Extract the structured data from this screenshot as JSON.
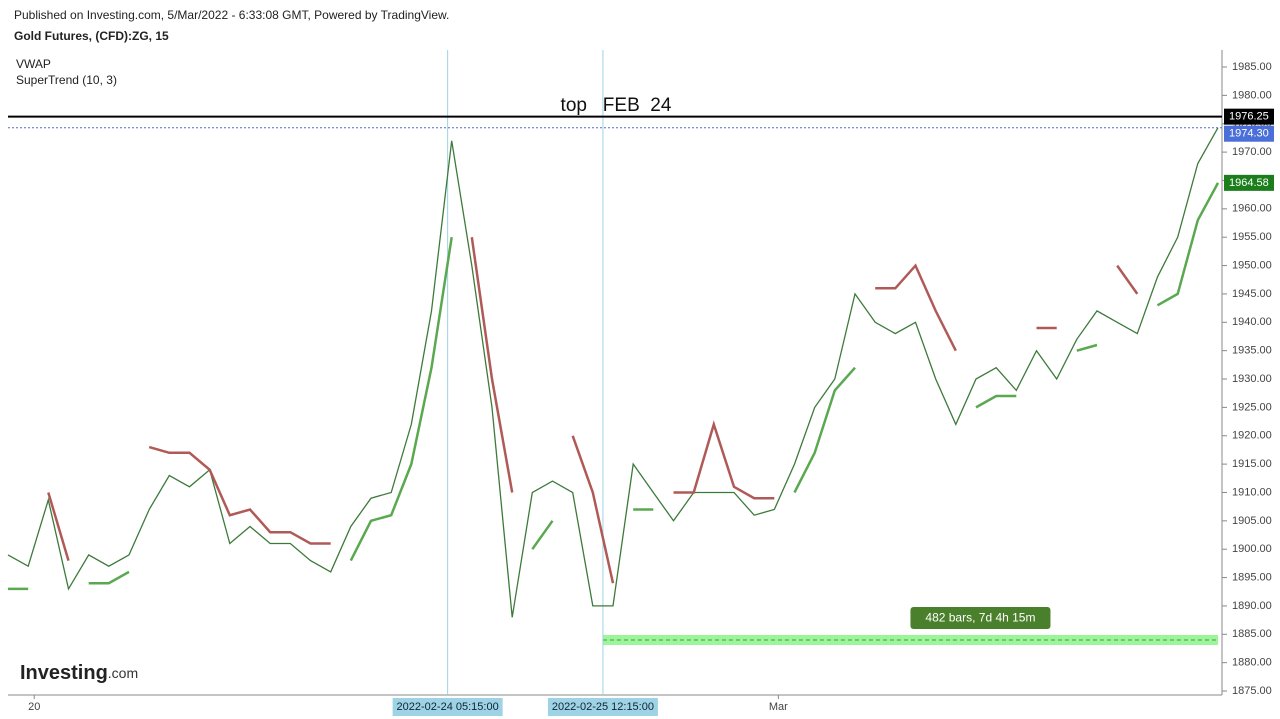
{
  "chart_data": {
    "type": "line",
    "published": "Published on Investing.com, 5/Mar/2022 - 6:33:08 GMT, Powered by TradingView.",
    "title": "Gold Futures, (CFD):ZG, 15",
    "indicators": [
      "VWAP",
      "SuperTrend (10, 3)"
    ],
    "annotation": "top   FEB  24",
    "logo": [
      "Investing",
      ".com"
    ],
    "x": [
      0,
      1,
      2,
      3,
      4,
      5,
      6,
      7,
      8,
      9,
      10,
      11,
      12,
      13,
      14,
      15,
      16,
      17,
      18,
      19,
      20,
      21,
      22,
      23,
      24,
      25,
      26,
      27,
      28,
      29,
      30,
      31,
      32,
      33,
      34,
      35,
      36,
      37,
      38,
      39,
      40,
      41,
      42,
      43,
      44,
      45,
      46,
      47,
      48,
      49,
      50,
      51,
      52,
      53,
      54,
      55,
      56,
      57,
      58,
      59,
      60
    ],
    "xlim": [
      0,
      60
    ],
    "xticks": [
      {
        "value": 1.3,
        "label": "20"
      },
      {
        "value": 38.2,
        "label": "Mar"
      }
    ],
    "series": [
      {
        "color": "#3d7a3a",
        "values": [
          1899,
          1897,
          1908.7,
          1893,
          1899,
          1897,
          1899,
          1907,
          1913,
          1911,
          1914,
          1901,
          1904,
          1901,
          1901,
          1898,
          1896,
          1904,
          1909,
          1910,
          1922,
          1942,
          1972,
          1950,
          1925,
          1888,
          1910,
          1912,
          1910,
          1890,
          1890,
          1915,
          1910,
          1905,
          1910,
          1910,
          1910,
          1906,
          1907,
          1915,
          1925,
          1930,
          1945,
          1940,
          1938,
          1940,
          1930,
          1922,
          1930,
          1932,
          1928,
          1935,
          1930,
          1937,
          1942,
          1940,
          1938,
          1948,
          1955,
          1968,
          1974.3
        ]
      },
      {
        "color": "#b05a58",
        "values": [
          null,
          null,
          1910,
          1898,
          null,
          null,
          null,
          1918,
          1917,
          1917,
          1914,
          1906,
          1907,
          1903,
          1903,
          1901,
          1901,
          null,
          null,
          null,
          null,
          null,
          null,
          1955,
          1930,
          1910,
          null,
          null,
          1920,
          1910,
          1894,
          null,
          null,
          1910,
          1910,
          1922,
          1911,
          1909,
          1909,
          null,
          null,
          null,
          null,
          1946,
          1946,
          1950,
          1942,
          1935,
          null,
          null,
          null,
          1939,
          1939,
          null,
          null,
          1950,
          1945,
          null,
          null,
          null,
          null
        ]
      },
      {
        "color": "#5aa84f",
        "values": [
          1893,
          1893,
          null,
          null,
          1894,
          1894,
          1896,
          null,
          null,
          null,
          null,
          null,
          null,
          null,
          null,
          null,
          null,
          1898,
          1905,
          1906,
          1915,
          1932,
          1955,
          null,
          null,
          null,
          1900,
          1905,
          null,
          null,
          null,
          1907,
          1907,
          null,
          null,
          null,
          null,
          null,
          null,
          1910,
          1917,
          1928,
          1932,
          null,
          null,
          null,
          null,
          null,
          1925,
          1927,
          1927,
          null,
          null,
          1935,
          1936,
          null,
          null,
          1943,
          1945,
          1958,
          1964.58
        ]
      }
    ],
    "levels": [
      {
        "value": 1976.25,
        "label": "1976.25",
        "color": "#000000"
      },
      {
        "value": 1974.3,
        "label": "1974.30",
        "color": "#4a6fd8"
      }
    ],
    "crosshairs": [
      {
        "x": 21.8,
        "label": "2022-02-24 05:15:00"
      },
      {
        "x": 29.5,
        "label": "2022-02-25 12:15:00"
      }
    ],
    "measure": {
      "x_start": 29.5,
      "x_end": 60,
      "price": 1884,
      "label": "482 bars, 7d 4h 15m"
    },
    "ylim": [
      1874.3,
      1988
    ],
    "yticks": [
      {
        "value": 1875,
        "label": "1875.00"
      },
      {
        "value": 1880,
        "label": "1880.00"
      },
      {
        "value": 1885,
        "label": "1885.00"
      },
      {
        "value": 1890,
        "label": "1890.00"
      },
      {
        "value": 1895,
        "label": "1895.00"
      },
      {
        "value": 1900,
        "label": "1900.00"
      },
      {
        "value": 1905,
        "label": "1905.00"
      },
      {
        "value": 1910,
        "label": "1910.00"
      },
      {
        "value": 1915,
        "label": "1915.00"
      },
      {
        "value": 1920,
        "label": "1920.00"
      },
      {
        "value": 1925,
        "label": "1925.00"
      },
      {
        "value": 1930,
        "label": "1930.00"
      },
      {
        "value": 1935,
        "label": "1935.00"
      },
      {
        "value": 1940,
        "label": "1940.00"
      },
      {
        "value": 1945,
        "label": "1945.00"
      },
      {
        "value": 1950,
        "label": "1950.00"
      },
      {
        "value": 1955,
        "label": "1955.00"
      },
      {
        "value": 1960,
        "label": "1960.00"
      },
      {
        "value": 1965,
        "label": "1965.00"
      },
      {
        "value": 1970,
        "label": "1970.00"
      },
      {
        "value": 1975,
        "label": "1975.00"
      },
      {
        "value": 1980,
        "label": "1980.00"
      },
      {
        "value": 1985,
        "label": "1985.00"
      }
    ]
  }
}
